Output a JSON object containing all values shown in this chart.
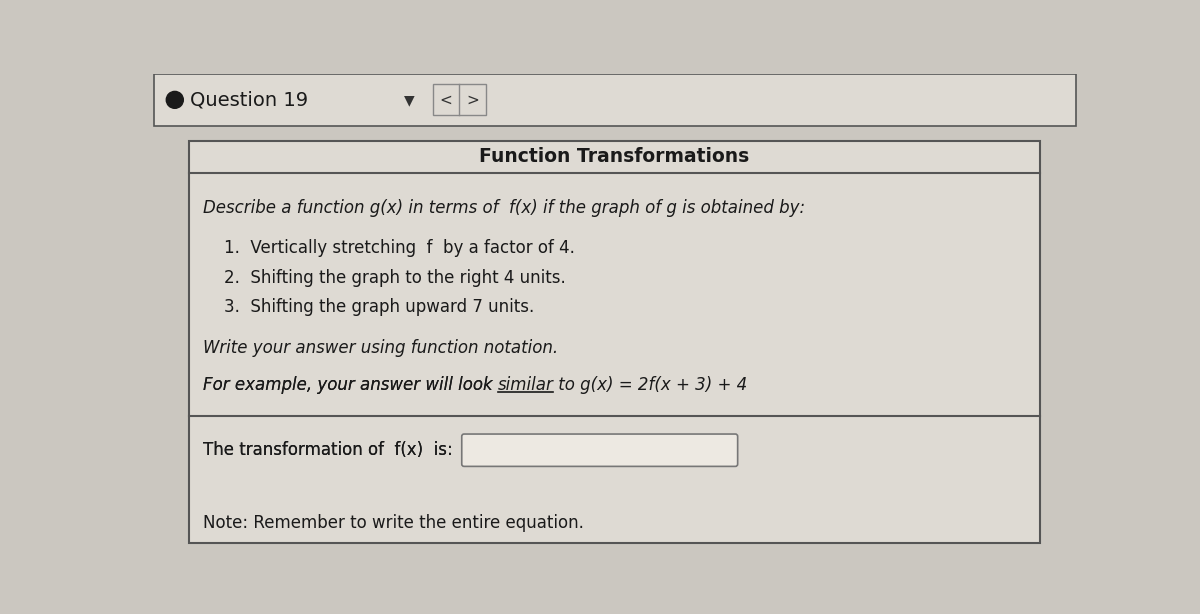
{
  "title": "Question 19",
  "section_title": "Function Transformations",
  "description": "Describe a function g(x) in terms of  f(x) if the graph of g is obtained by:",
  "items": [
    "1.  Vertically stretching  f  by a factor of 4.",
    "2.  Shifting the graph to the right 4 units.",
    "3.  Shifting the graph upward 7 units."
  ],
  "write_answer": "Write your answer using function notation.",
  "for_example_prefix": "For example, your answer will look ",
  "similar_text": "similar",
  "example_suffix": " to g(x) = 2f(x + 3) + 4",
  "transformation_label": "The transformation of  f(x)  is:",
  "note": "Note: Remember to write the entire equation.",
  "bg_color": "#cbc7c0",
  "content_bg": "#dedad3",
  "border_color": "#555555",
  "text_color": "#1a1a1a",
  "nav_border": "#888888",
  "input_box_bg": "#ede9e2",
  "input_box_border": "#777777"
}
